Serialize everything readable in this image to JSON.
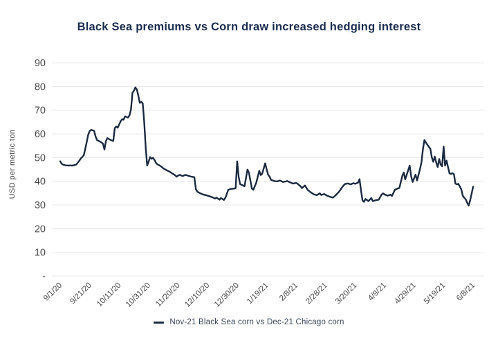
{
  "colors": {
    "background": "#ffffff",
    "title_text": "#1b2d4f",
    "line": "#1b2a41",
    "grid": "#e8e8e8",
    "axis_text": "#4a4a4a",
    "legend_text": "#374357"
  },
  "chart_data": {
    "type": "line",
    "title": "Black Sea premiums vs Corn draw increased hedging interest",
    "xlabel": "",
    "ylabel": "USD per metric ton",
    "ylim": [
      0,
      90
    ],
    "grid": "horizontal",
    "legend_position": "bottom",
    "yticks": [
      {
        "v": 90,
        "label": "90"
      },
      {
        "v": 80,
        "label": "80"
      },
      {
        "v": 70,
        "label": "70"
      },
      {
        "v": 60,
        "label": "60"
      },
      {
        "v": 50,
        "label": "50"
      },
      {
        "v": 40,
        "label": "40"
      },
      {
        "v": 30,
        "label": "30"
      },
      {
        "v": 20,
        "label": "20"
      },
      {
        "v": 10,
        "label": "10"
      },
      {
        "v": 0,
        "label": "-"
      }
    ],
    "xtick_labels": [
      "9/1/20",
      "9/21/20",
      "10/11/20",
      "10/31/20",
      "11/20/20",
      "12/10/20",
      "12/30/20",
      "1/19/21",
      "2/8/21",
      "2/28/21",
      "3/20/21",
      "4/9/21",
      "4/29/21",
      "5/19/21",
      "6/8/21"
    ],
    "series": [
      {
        "name": "Nov-21 Black Sea corn vs Dec-21 Chicago corn",
        "color": "#1b2a41",
        "dates": [
          "9/1/20",
          "9/2/20",
          "9/3/20",
          "9/4/20",
          "9/5/20",
          "9/7/20",
          "9/8/20",
          "9/9/20",
          "9/10/20",
          "9/11/20",
          "9/12/20",
          "9/14/20",
          "9/15/20",
          "9/16/20",
          "9/17/20",
          "9/18/20",
          "9/19/20",
          "9/20/20",
          "9/21/20",
          "9/22/20",
          "9/23/20",
          "9/24/20",
          "9/25/20",
          "9/26/20",
          "9/28/20",
          "9/29/20",
          "9/30/20",
          "10/1/20",
          "10/2/20",
          "10/3/20",
          "10/5/20",
          "10/6/20",
          "10/7/20",
          "10/8/20",
          "10/9/20",
          "10/10/20",
          "10/12/20",
          "10/13/20",
          "10/14/20",
          "10/15/20",
          "10/16/20",
          "10/17/20",
          "10/18/20",
          "10/19/20",
          "10/20/20",
          "10/21/20",
          "10/22/20",
          "10/23/20",
          "10/24/20",
          "10/25/20",
          "10/26/20",
          "10/27/20",
          "10/28/20",
          "10/29/20",
          "10/30/20",
          "10/31/20",
          "11/1/20",
          "11/2/20",
          "11/3/20",
          "11/4/20",
          "11/5/20",
          "11/6/20",
          "11/7/20",
          "11/9/20",
          "11/10/20",
          "11/12/20",
          "11/14/20",
          "11/16/20",
          "11/18/20",
          "11/19/20",
          "11/20/20",
          "11/21/20",
          "11/23/20",
          "11/25/20",
          "11/27/20",
          "11/29/20",
          "12/1/20",
          "12/2/20",
          "12/3/20",
          "12/5/20",
          "12/7/20",
          "12/9/20",
          "12/11/20",
          "12/13/20",
          "12/15/20",
          "12/16/20",
          "12/18/20",
          "12/19/20",
          "12/21/20",
          "12/22/20",
          "12/23/20",
          "12/24/20",
          "12/26/20",
          "12/28/20",
          "12/29/20",
          "12/30/20",
          "12/31/20",
          "1/1/21",
          "1/2/21",
          "1/4/21",
          "1/6/21",
          "1/7/21",
          "1/9/21",
          "1/10/21",
          "1/12/21",
          "1/14/21",
          "1/15/21",
          "1/16/21",
          "1/18/21",
          "1/19/21",
          "1/20/21",
          "1/21/21",
          "1/22/21",
          "1/24/21",
          "1/26/21",
          "1/28/21",
          "1/30/21",
          "2/1/21",
          "2/2/21",
          "2/4/21",
          "2/6/21",
          "2/8/21",
          "2/9/21",
          "2/11/21",
          "2/12/21",
          "2/14/21",
          "2/16/21",
          "2/18/21",
          "2/20/21",
          "2/22/21",
          "2/24/21",
          "2/25/21",
          "2/27/21",
          "3/1/21",
          "3/3/21",
          "3/5/21",
          "3/7/21",
          "3/9/21",
          "3/11/21",
          "3/13/21",
          "3/15/21",
          "3/17/21",
          "3/19/21",
          "3/20/21",
          "3/22/21",
          "3/23/21",
          "3/24/21",
          "3/25/21",
          "3/26/21",
          "3/27/21",
          "3/29/21",
          "3/31/21",
          "4/1/21",
          "4/3/21",
          "4/5/21",
          "4/7/21",
          "4/8/21",
          "4/9/21",
          "4/11/21",
          "4/13/21",
          "4/14/21",
          "4/16/21",
          "4/18/21",
          "4/19/21",
          "4/21/21",
          "4/22/21",
          "4/23/21",
          "4/26/21",
          "4/27/21",
          "4/28/21",
          "4/30/21",
          "5/1/21",
          "5/3/21",
          "5/4/21",
          "5/5/21",
          "5/6/21",
          "5/7/21",
          "5/8/21",
          "5/10/21",
          "5/11/21",
          "5/12/21",
          "5/13/21",
          "5/14/21",
          "5/15/21",
          "5/16/21",
          "5/17/21",
          "5/18/21",
          "5/19/21",
          "5/20/21",
          "5/21/21",
          "5/22/21",
          "5/23/21",
          "5/24/21",
          "5/25/21",
          "5/26/21",
          "5/27/21",
          "5/28/21",
          "5/29/21",
          "5/31/21",
          "6/1/21",
          "6/2/21",
          "6/3/21",
          "6/4/21",
          "6/5/21",
          "6/6/21",
          "6/7/21",
          "6/8/21"
        ],
        "values": [
          48.4,
          47.4,
          47.0,
          46.8,
          46.7,
          46.6,
          46.7,
          46.6,
          46.7,
          46.9,
          47.1,
          48.7,
          49.6,
          50.3,
          50.9,
          53.6,
          56.6,
          59.6,
          61.2,
          61.7,
          61.5,
          61.3,
          58.9,
          57.4,
          56.7,
          56.4,
          55.9,
          53.4,
          56.9,
          58.2,
          57.5,
          57.2,
          57.0,
          62.4,
          63.1,
          62.6,
          65.3,
          66.2,
          66.0,
          67.4,
          67.1,
          66.9,
          67.8,
          70.2,
          77.3,
          78.2,
          79.6,
          78.7,
          76.1,
          73.1,
          73.6,
          72.8,
          65.0,
          54.0,
          46.6,
          48.3,
          50.2,
          49.5,
          49.9,
          48.9,
          47.7,
          47.1,
          46.8,
          46.0,
          45.4,
          44.7,
          44.1,
          43.3,
          42.5,
          41.9,
          42.4,
          42.7,
          42.2,
          42.7,
          42.3,
          41.9,
          41.7,
          36.6,
          35.6,
          34.9,
          34.4,
          34.1,
          33.7,
          33.3,
          32.7,
          33.1,
          32.2,
          32.9,
          32.1,
          33.0,
          34.6,
          36.4,
          36.8,
          36.9,
          37.1,
          48.4,
          42.0,
          38.8,
          38.5,
          37.9,
          44.9,
          43.6,
          36.9,
          36.4,
          39.5,
          44.4,
          42.6,
          43.2,
          47.6,
          45.0,
          42.8,
          41.9,
          40.6,
          40.1,
          39.9,
          40.3,
          39.7,
          39.9,
          40.1,
          39.5,
          39.0,
          39.3,
          38.9,
          37.9,
          37.1,
          38.2,
          36.2,
          35.3,
          34.5,
          34.1,
          34.9,
          34.2,
          34.6,
          33.9,
          33.4,
          33.1,
          34.2,
          35.5,
          37.3,
          38.8,
          39.1,
          38.7,
          39.2,
          38.9,
          39.4,
          40.9,
          36.0,
          31.9,
          31.3,
          32.5,
          31.6,
          32.9,
          31.6,
          32.0,
          32.2,
          34.4,
          34.9,
          34.4,
          33.9,
          34.3,
          33.8,
          36.4,
          37.0,
          37.2,
          42.3,
          43.7,
          40.8,
          46.6,
          42.0,
          39.7,
          42.8,
          40.3,
          45.1,
          48.1,
          53.6,
          57.4,
          56.3,
          55.4,
          53.7,
          50.1,
          48.2,
          50.4,
          47.9,
          46.0,
          49.4,
          47.0,
          46.3,
          54.6,
          46.6,
          48.7,
          45.9,
          43.3,
          43.1,
          43.4,
          43.0,
          39.0,
          38.7,
          38.9,
          36.6,
          33.9,
          33.0,
          32.4,
          30.9,
          29.7,
          31.9,
          34.8,
          37.7
        ]
      }
    ]
  }
}
